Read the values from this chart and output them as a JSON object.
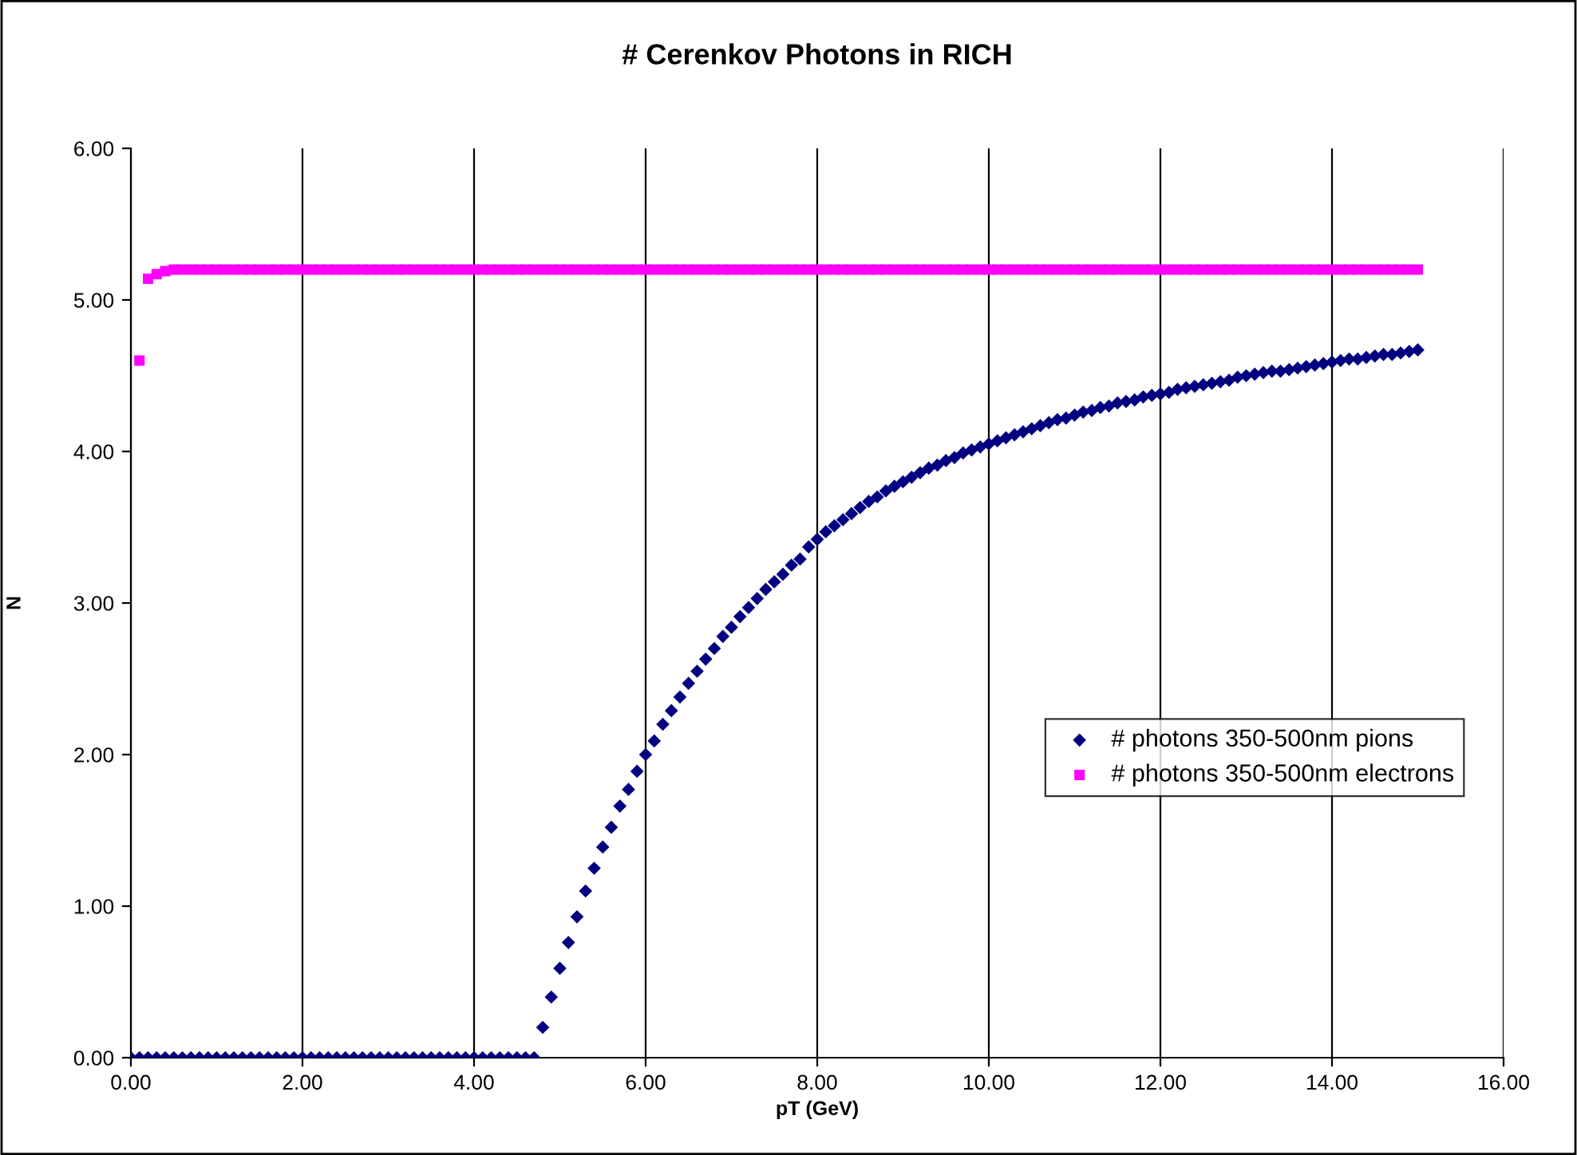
{
  "chart_data": {
    "type": "scatter",
    "title": "# Cerenkov Photons in RICH",
    "xlabel": "pT (GeV)",
    "ylabel": "N",
    "xlim": [
      0,
      16
    ],
    "ylim": [
      0,
      6
    ],
    "xticks": [
      {
        "value": 0,
        "label": "0.00"
      },
      {
        "value": 2,
        "label": "2.00"
      },
      {
        "value": 4,
        "label": "4.00"
      },
      {
        "value": 6,
        "label": "6.00"
      },
      {
        "value": 8,
        "label": "8.00"
      },
      {
        "value": 10,
        "label": "10.00"
      },
      {
        "value": 12,
        "label": "12.00"
      },
      {
        "value": 14,
        "label": "14.00"
      },
      {
        "value": 16,
        "label": "16.00"
      }
    ],
    "yticks": [
      {
        "value": 0,
        "label": "0.00"
      },
      {
        "value": 1,
        "label": "1.00"
      },
      {
        "value": 2,
        "label": "2.00"
      },
      {
        "value": 3,
        "label": "3.00"
      },
      {
        "value": 4,
        "label": "4.00"
      },
      {
        "value": 5,
        "label": "5.00"
      },
      {
        "value": 6,
        "label": "6.00"
      }
    ],
    "grid": "x",
    "legend": "right",
    "series": [
      {
        "name": "# photons 350-500nm pions",
        "color": "#000080",
        "marker": "diamond",
        "x": [
          0,
          0.1,
          0.2,
          0.3,
          0.4,
          0.5,
          0.6,
          0.7,
          0.8,
          0.9,
          1,
          1.1,
          1.2,
          1.3,
          1.4,
          1.5,
          1.6,
          1.7,
          1.8,
          1.9,
          2,
          2.1,
          2.2,
          2.3,
          2.4,
          2.5,
          2.6,
          2.7,
          2.8,
          2.9,
          3,
          3.1,
          3.2,
          3.3,
          3.4,
          3.5,
          3.6,
          3.7,
          3.8,
          3.9,
          4,
          4.1,
          4.2,
          4.3,
          4.4,
          4.5,
          4.6,
          4.7,
          4.8,
          4.9,
          5,
          5.1,
          5.2,
          5.3,
          5.4,
          5.5,
          5.6,
          5.7,
          5.8,
          5.9,
          6,
          6.1,
          6.2,
          6.3,
          6.4,
          6.5,
          6.6,
          6.7,
          6.8,
          6.9,
          7,
          7.1,
          7.2,
          7.3,
          7.4,
          7.5,
          7.6,
          7.7,
          7.8,
          7.9,
          8,
          8.1,
          8.2,
          8.3,
          8.4,
          8.5,
          8.6,
          8.7,
          8.8,
          8.9,
          9,
          9.1,
          9.2,
          9.3,
          9.4,
          9.5,
          9.6,
          9.7,
          9.8,
          9.9,
          10,
          10.1,
          10.2,
          10.3,
          10.4,
          10.5,
          10.6,
          10.7,
          10.8,
          10.9,
          11,
          11.1,
          11.2,
          11.3,
          11.4,
          11.5,
          11.6,
          11.7,
          11.8,
          11.9,
          12,
          12.1,
          12.2,
          12.3,
          12.4,
          12.5,
          12.6,
          12.7,
          12.8,
          12.9,
          13,
          13.1,
          13.2,
          13.3,
          13.4,
          13.5,
          13.6,
          13.7,
          13.8,
          13.9,
          14,
          14.1,
          14.2,
          14.3,
          14.4,
          14.5,
          14.6,
          14.7,
          14.8,
          14.9,
          15
        ],
        "values": [
          0,
          0,
          0,
          0,
          0,
          0,
          0,
          0,
          0,
          0,
          0,
          0,
          0,
          0,
          0,
          0,
          0,
          0,
          0,
          0,
          0,
          0,
          0,
          0,
          0,
          0,
          0,
          0,
          0,
          0,
          0,
          0,
          0,
          0,
          0,
          0,
          0,
          0,
          0,
          0,
          0,
          0,
          0,
          0,
          0,
          0,
          0,
          0,
          0.2,
          0.4,
          0.59,
          0.76,
          0.93,
          1.1,
          1.25,
          1.39,
          1.52,
          1.66,
          1.77,
          1.89,
          2.0,
          2.09,
          2.2,
          2.29,
          2.38,
          2.47,
          2.55,
          2.63,
          2.7,
          2.78,
          2.84,
          2.91,
          2.97,
          3.03,
          3.09,
          3.14,
          3.19,
          3.25,
          3.29,
          3.37,
          3.42,
          3.47,
          3.51,
          3.55,
          3.59,
          3.63,
          3.67,
          3.7,
          3.74,
          3.77,
          3.8,
          3.83,
          3.86,
          3.89,
          3.91,
          3.94,
          3.96,
          3.99,
          4.01,
          4.03,
          4.05,
          4.07,
          4.09,
          4.11,
          4.13,
          4.15,
          4.17,
          4.19,
          4.21,
          4.22,
          4.24,
          4.26,
          4.27,
          4.29,
          4.3,
          4.32,
          4.33,
          4.34,
          4.36,
          4.37,
          4.38,
          4.39,
          4.41,
          4.42,
          4.43,
          4.44,
          4.45,
          4.46,
          4.47,
          4.49,
          4.5,
          4.51,
          4.52,
          4.53,
          4.53,
          4.54,
          4.55,
          4.56,
          4.57,
          4.58,
          4.59,
          4.6,
          4.61,
          4.61,
          4.62,
          4.63,
          4.64,
          4.64,
          4.65,
          4.66,
          4.67
        ]
      },
      {
        "name": "# photons 350-500nm electrons",
        "color": "#ff00ff",
        "marker": "square",
        "x": [
          0.1,
          0.2,
          0.3,
          0.4,
          0.5,
          0.6,
          0.7,
          0.8,
          0.9,
          1,
          1.1,
          1.2,
          1.3,
          1.4,
          1.5,
          1.6,
          1.7,
          1.8,
          1.9,
          2,
          2.1,
          2.2,
          2.3,
          2.4,
          2.5,
          2.6,
          2.7,
          2.8,
          2.9,
          3,
          3.1,
          3.2,
          3.3,
          3.4,
          3.5,
          3.6,
          3.7,
          3.8,
          3.9,
          4,
          4.1,
          4.2,
          4.3,
          4.4,
          4.5,
          4.6,
          4.7,
          4.8,
          4.9,
          5,
          5.1,
          5.2,
          5.3,
          5.4,
          5.5,
          5.6,
          5.7,
          5.8,
          5.9,
          6,
          6.1,
          6.2,
          6.3,
          6.4,
          6.5,
          6.6,
          6.7,
          6.8,
          6.9,
          7,
          7.1,
          7.2,
          7.3,
          7.4,
          7.5,
          7.6,
          7.7,
          7.8,
          7.9,
          8,
          8.1,
          8.2,
          8.3,
          8.4,
          8.5,
          8.6,
          8.7,
          8.8,
          8.9,
          9,
          9.1,
          9.2,
          9.3,
          9.4,
          9.5,
          9.6,
          9.7,
          9.8,
          9.9,
          10,
          10.1,
          10.2,
          10.3,
          10.4,
          10.5,
          10.6,
          10.7,
          10.8,
          10.9,
          11,
          11.1,
          11.2,
          11.3,
          11.4,
          11.5,
          11.6,
          11.7,
          11.8,
          11.9,
          12,
          12.1,
          12.2,
          12.3,
          12.4,
          12.5,
          12.6,
          12.7,
          12.8,
          12.9,
          13,
          13.1,
          13.2,
          13.3,
          13.4,
          13.5,
          13.6,
          13.7,
          13.8,
          13.9,
          14,
          14.1,
          14.2,
          14.3,
          14.4,
          14.5,
          14.6,
          14.7,
          14.8,
          14.9,
          15
        ],
        "values": [
          4.6,
          5.14,
          5.17,
          5.19,
          5.2,
          5.2,
          5.2,
          5.2,
          5.2,
          5.2,
          5.2,
          5.2,
          5.2,
          5.2,
          5.2,
          5.2,
          5.2,
          5.2,
          5.2,
          5.2,
          5.2,
          5.2,
          5.2,
          5.2,
          5.2,
          5.2,
          5.2,
          5.2,
          5.2,
          5.2,
          5.2,
          5.2,
          5.2,
          5.2,
          5.2,
          5.2,
          5.2,
          5.2,
          5.2,
          5.2,
          5.2,
          5.2,
          5.2,
          5.2,
          5.2,
          5.2,
          5.2,
          5.2,
          5.2,
          5.2,
          5.2,
          5.2,
          5.2,
          5.2,
          5.2,
          5.2,
          5.2,
          5.2,
          5.2,
          5.2,
          5.2,
          5.2,
          5.2,
          5.2,
          5.2,
          5.2,
          5.2,
          5.2,
          5.2,
          5.2,
          5.2,
          5.2,
          5.2,
          5.2,
          5.2,
          5.2,
          5.2,
          5.2,
          5.2,
          5.2,
          5.2,
          5.2,
          5.2,
          5.2,
          5.2,
          5.2,
          5.2,
          5.2,
          5.2,
          5.2,
          5.2,
          5.2,
          5.2,
          5.2,
          5.2,
          5.2,
          5.2,
          5.2,
          5.2,
          5.2,
          5.2,
          5.2,
          5.2,
          5.2,
          5.2,
          5.2,
          5.2,
          5.2,
          5.2,
          5.2,
          5.2,
          5.2,
          5.2,
          5.2,
          5.2,
          5.2,
          5.2,
          5.2,
          5.2,
          5.2,
          5.2,
          5.2,
          5.2,
          5.2,
          5.2,
          5.2,
          5.2,
          5.2,
          5.2,
          5.2,
          5.2,
          5.2,
          5.2,
          5.2,
          5.2,
          5.2,
          5.2,
          5.2,
          5.2,
          5.2,
          5.2,
          5.2,
          5.2,
          5.2,
          5.2,
          5.2,
          5.2,
          5.2,
          5.2,
          5.2
        ]
      }
    ]
  }
}
